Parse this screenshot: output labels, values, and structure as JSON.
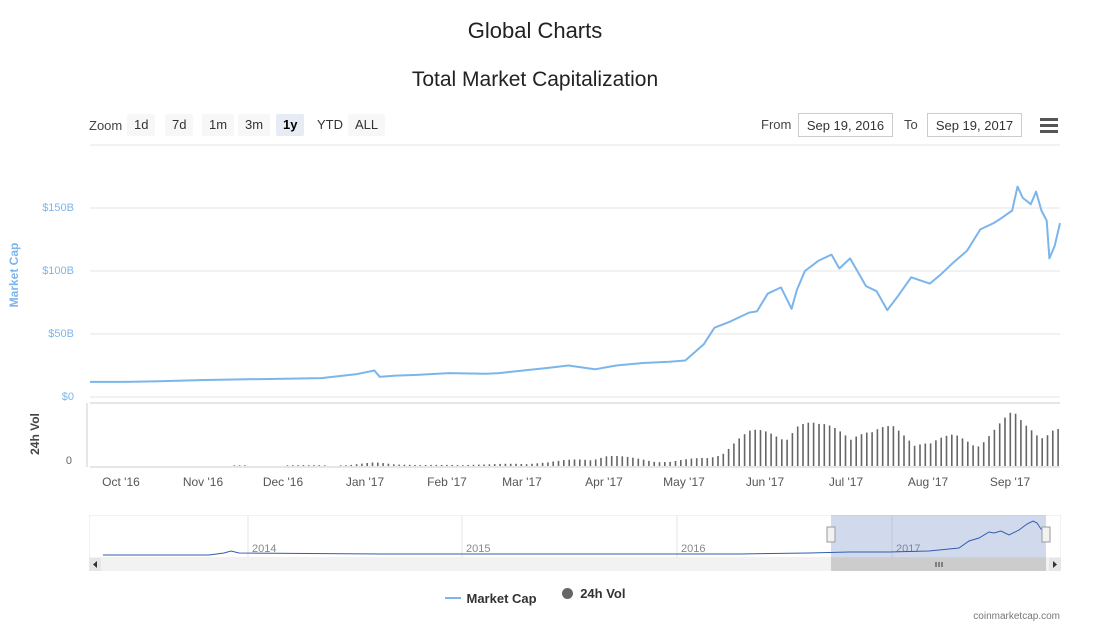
{
  "page_title": "Global Charts",
  "toolbar": {
    "zoom_label": "Zoom",
    "zoom_buttons": [
      "1d",
      "7d",
      "1m",
      "3m",
      "1y",
      "YTD",
      "ALL"
    ],
    "active_zoom": "1y",
    "from_label": "From",
    "from_value": "Sep 19, 2016",
    "to_label": "To",
    "to_value": "Sep 19, 2017",
    "menu_icon": "hamburger-menu-icon"
  },
  "colors": {
    "market_cap": "#7cb5ec",
    "volume": "#666666",
    "navigator_line": "#335cad",
    "navigator_mask": "rgba(102,133,194,0.3)"
  },
  "navigator": {
    "year_labels": [
      "2014",
      "2015",
      "2016",
      "2017"
    ]
  },
  "credits": "coinmarketcap.com",
  "chart_data": {
    "type": "line",
    "title": "Total Market Capitalization",
    "ylabel": "Market Cap",
    "ylabel_volume": "24h Vol",
    "ylim": [
      0,
      200
    ],
    "y_unit": "B USD",
    "y_ticks": [
      "$0",
      "$50B",
      "$100B",
      "$150B"
    ],
    "volume_tick": "0",
    "x_range": [
      "Sep 19, 2016",
      "Sep 19, 2017"
    ],
    "x_ticks": [
      "Oct '16",
      "Nov '16",
      "Dec '16",
      "Jan '17",
      "Feb '17",
      "Mar '17",
      "Apr '17",
      "May '17",
      "Jun '17",
      "Jul '17",
      "Aug '17",
      "Sep '17"
    ],
    "grid": true,
    "legend_position": "bottom-center",
    "series": [
      {
        "name": "Market Cap",
        "x": [
          "2016-09-19",
          "2016-10-01",
          "2016-10-15",
          "2016-11-01",
          "2016-11-15",
          "2016-12-01",
          "2016-12-15",
          "2016-12-28",
          "2017-01-04",
          "2017-01-06",
          "2017-01-12",
          "2017-01-20",
          "2017-02-01",
          "2017-02-15",
          "2017-02-20",
          "2017-03-01",
          "2017-03-10",
          "2017-03-18",
          "2017-03-28",
          "2017-04-05",
          "2017-04-15",
          "2017-04-25",
          "2017-05-01",
          "2017-05-08",
          "2017-05-12",
          "2017-05-18",
          "2017-05-22",
          "2017-05-25",
          "2017-05-28",
          "2017-06-01",
          "2017-06-06",
          "2017-06-10",
          "2017-06-12",
          "2017-06-15",
          "2017-06-20",
          "2017-06-25",
          "2017-06-28",
          "2017-07-02",
          "2017-07-08",
          "2017-07-12",
          "2017-07-16",
          "2017-07-20",
          "2017-07-25",
          "2017-08-01",
          "2017-08-05",
          "2017-08-10",
          "2017-08-15",
          "2017-08-20",
          "2017-08-25",
          "2017-08-28",
          "2017-09-01",
          "2017-09-03",
          "2017-09-05",
          "2017-09-08",
          "2017-09-10",
          "2017-09-12",
          "2017-09-14",
          "2017-09-15",
          "2017-09-17",
          "2017-09-19"
        ],
        "values": [
          12,
          12,
          12.5,
          13.5,
          14,
          14.5,
          15,
          18,
          21,
          16,
          17,
          17.5,
          19,
          18.5,
          19,
          21,
          23,
          25,
          22,
          25,
          27,
          28,
          29,
          42,
          55,
          60,
          64,
          67,
          68,
          82,
          87,
          70,
          85,
          100,
          108,
          113,
          102,
          110,
          88,
          84,
          69,
          80,
          95,
          90,
          97,
          107,
          116,
          133,
          138,
          142,
          148,
          167,
          158,
          153,
          163,
          148,
          140,
          110,
          120,
          138
        ]
      },
      {
        "name": "24h Vol",
        "x": [
          "2016-09-19",
          "2016-12-25",
          "2017-01-04",
          "2017-01-20",
          "2017-02-15",
          "2017-03-10",
          "2017-04-01",
          "2017-04-25",
          "2017-05-10",
          "2017-05-20",
          "2017-05-25",
          "2017-06-05",
          "2017-06-12",
          "2017-06-20",
          "2017-07-01",
          "2017-07-10",
          "2017-07-18",
          "2017-07-25",
          "2017-08-01",
          "2017-08-10",
          "2017-08-17",
          "2017-08-25",
          "2017-09-01",
          "2017-09-05",
          "2017-09-10",
          "2017-09-15",
          "2017-09-19"
        ],
        "values": [
          0.1,
          0.3,
          1.2,
          0.3,
          0.5,
          1.2,
          3.5,
          1.5,
          3,
          9,
          11,
          12,
          15,
          13,
          14,
          11,
          13,
          11,
          8,
          10,
          9,
          13,
          17,
          14,
          13,
          15,
          13
        ]
      }
    ]
  }
}
